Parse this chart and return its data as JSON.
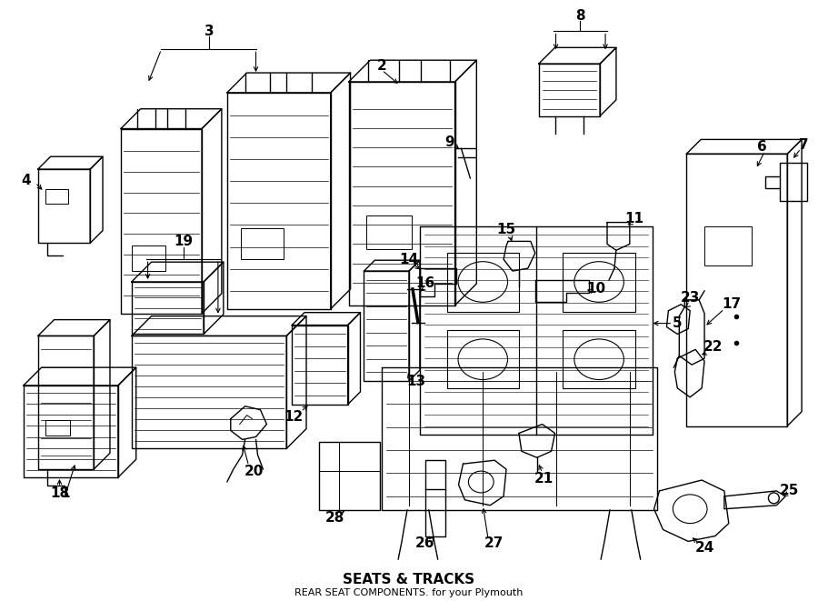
{
  "title": "SEATS & TRACKS",
  "subtitle": "REAR SEAT COMPONENTS. for your Plymouth",
  "bg_color": "#ffffff",
  "line_color": "#000000",
  "fig_width": 9.0,
  "fig_height": 6.61,
  "dpi": 100,
  "lw": 1.0,
  "label_fs": 11,
  "title_fs": 11,
  "subtitle_fs": 8
}
